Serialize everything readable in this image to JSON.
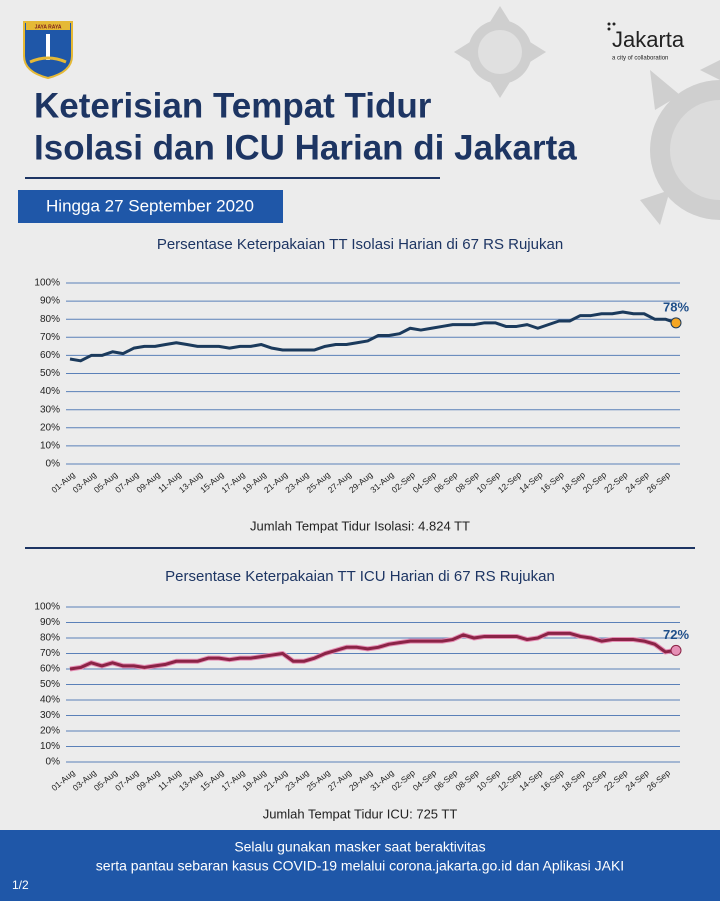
{
  "header": {
    "title_lines": [
      "Keterisian Tempat Tidur",
      "Isolasi dan ICU Harian di Jakarta"
    ],
    "date_banner": "Hingga 27 September 2020"
  },
  "logo": {
    "emblem_text": "JAYA RAYA",
    "brand": "Jakarta",
    "tagline": "a city of collaboration"
  },
  "footer": {
    "lines": [
      "Selalu gunakan masker saat beraktivitas",
      "serta pantau sebaran kasus COVID-19 melalui corona.jakarta.go.id dan Aplikasi JAKI"
    ],
    "page": "1/2"
  },
  "chart_data": [
    {
      "type": "line",
      "title": "Persentase Keterpakaian TT Isolasi Harian di 67 RS Rujukan",
      "note": "Jumlah Tempat Tidur Isolasi: 4.824 TT",
      "categories": [
        "01-Aug",
        null,
        "03-Aug",
        null,
        "05-Aug",
        null,
        "07-Aug",
        null,
        "09-Aug",
        null,
        "11-Aug",
        null,
        "13-Aug",
        null,
        "15-Aug",
        null,
        "17-Aug",
        null,
        "19-Aug",
        null,
        "21-Aug",
        null,
        "23-Aug",
        null,
        "25-Aug",
        null,
        "27-Aug",
        null,
        "29-Aug",
        null,
        "31-Aug",
        null,
        "02-Sep",
        null,
        "04-Sep",
        null,
        "06-Sep",
        null,
        "08-Sep",
        null,
        "10-Sep",
        null,
        "12-Sep",
        null,
        "14-Sep",
        null,
        "16-Sep",
        null,
        "18-Sep",
        null,
        "20-Sep",
        null,
        "22-Sep",
        null,
        "24-Sep",
        null,
        "26-Sep",
        null
      ],
      "series": [
        {
          "name": "Isolasi",
          "color": "#1b3a5c",
          "marker_color": "#f5a623",
          "values": [
            58,
            57,
            60,
            60,
            62,
            61,
            64,
            65,
            65,
            66,
            67,
            66,
            65,
            65,
            65,
            64,
            65,
            65,
            66,
            64,
            63,
            63,
            63,
            63,
            65,
            66,
            66,
            67,
            68,
            71,
            71,
            72,
            75,
            74,
            75,
            76,
            77,
            77,
            77,
            78,
            78,
            76,
            76,
            77,
            75,
            77,
            79,
            79,
            82,
            82,
            83,
            83,
            84,
            83,
            83,
            80,
            80,
            78
          ],
          "value_labels": [
            null,
            null,
            null,
            null,
            null,
            null,
            null,
            null,
            null,
            null,
            null,
            null,
            null,
            null,
            null,
            null,
            null,
            null,
            null,
            null,
            null,
            null,
            null,
            null,
            null,
            null,
            null,
            null,
            null,
            null,
            null,
            null,
            null,
            null,
            null,
            null,
            null,
            null,
            null,
            null,
            null,
            null,
            null,
            null,
            null,
            null,
            null,
            null,
            null,
            null,
            null,
            null,
            null,
            null,
            null,
            null,
            null,
            "78%"
          ]
        }
      ],
      "ylim": [
        0,
        100
      ],
      "grid": true,
      "grid_color": "#5a80b8",
      "yticks": [
        {
          "value": 0,
          "label": "0%"
        },
        {
          "value": 10,
          "label": "10%"
        },
        {
          "value": 20,
          "label": "20%"
        },
        {
          "value": 30,
          "label": "30%"
        },
        {
          "value": 40,
          "label": "40%"
        },
        {
          "value": 50,
          "label": "50%"
        },
        {
          "value": 60,
          "label": "60%"
        },
        {
          "value": 70,
          "label": "70%"
        },
        {
          "value": 80,
          "label": "80%"
        },
        {
          "value": 90,
          "label": "90%"
        },
        {
          "value": 100,
          "label": "100%"
        }
      ]
    },
    {
      "type": "line",
      "title": "Persentase Keterpakaian TT ICU Harian di 67 RS Rujukan",
      "note": "Jumlah Tempat Tidur ICU: 725 TT",
      "categories": [
        "01-Aug",
        null,
        "03-Aug",
        null,
        "05-Aug",
        null,
        "07-Aug",
        null,
        "09-Aug",
        null,
        "11-Aug",
        null,
        "13-Aug",
        null,
        "15-Aug",
        null,
        "17-Aug",
        null,
        "19-Aug",
        null,
        "21-Aug",
        null,
        "23-Aug",
        null,
        "25-Aug",
        null,
        "27-Aug",
        null,
        "29-Aug",
        null,
        "31-Aug",
        null,
        "02-Sep",
        null,
        "04-Sep",
        null,
        "06-Sep",
        null,
        "08-Sep",
        null,
        "10-Sep",
        null,
        "12-Sep",
        null,
        "14-Sep",
        null,
        "16-Sep",
        null,
        "18-Sep",
        null,
        "20-Sep",
        null,
        "22-Sep",
        null,
        "24-Sep",
        null,
        "26-Sep",
        null
      ],
      "series": [
        {
          "name": "ICU",
          "color": "#8b2346",
          "outline_color": "#e58fb5",
          "marker_color": "#e58fb5",
          "values": [
            60,
            61,
            64,
            62,
            64,
            62,
            62,
            61,
            62,
            63,
            65,
            65,
            65,
            67,
            67,
            66,
            67,
            67,
            68,
            69,
            70,
            65,
            65,
            67,
            70,
            72,
            74,
            74,
            73,
            74,
            76,
            77,
            78,
            78,
            78,
            78,
            79,
            82,
            80,
            81,
            81,
            81,
            81,
            79,
            80,
            83,
            83,
            83,
            81,
            80,
            78,
            79,
            79,
            79,
            78,
            76,
            71,
            72
          ],
          "value_labels": [
            null,
            null,
            null,
            null,
            null,
            null,
            null,
            null,
            null,
            null,
            null,
            null,
            null,
            null,
            null,
            null,
            null,
            null,
            null,
            null,
            null,
            null,
            null,
            null,
            null,
            null,
            null,
            null,
            null,
            null,
            null,
            null,
            null,
            null,
            null,
            null,
            null,
            null,
            null,
            null,
            null,
            null,
            null,
            null,
            null,
            null,
            null,
            null,
            null,
            null,
            null,
            null,
            null,
            null,
            null,
            null,
            null,
            "72%"
          ]
        }
      ],
      "ylim": [
        0,
        100
      ],
      "grid": true,
      "grid_color": "#5a80b8",
      "yticks": [
        {
          "value": 0,
          "label": "0%"
        },
        {
          "value": 10,
          "label": "10%"
        },
        {
          "value": 20,
          "label": "20%"
        },
        {
          "value": 30,
          "label": "30%"
        },
        {
          "value": 40,
          "label": "40%"
        },
        {
          "value": 50,
          "label": "50%"
        },
        {
          "value": 60,
          "label": "60%"
        },
        {
          "value": 70,
          "label": "70%"
        },
        {
          "value": 80,
          "label": "80%"
        },
        {
          "value": 90,
          "label": "90%"
        },
        {
          "value": 100,
          "label": "100%"
        }
      ]
    }
  ]
}
